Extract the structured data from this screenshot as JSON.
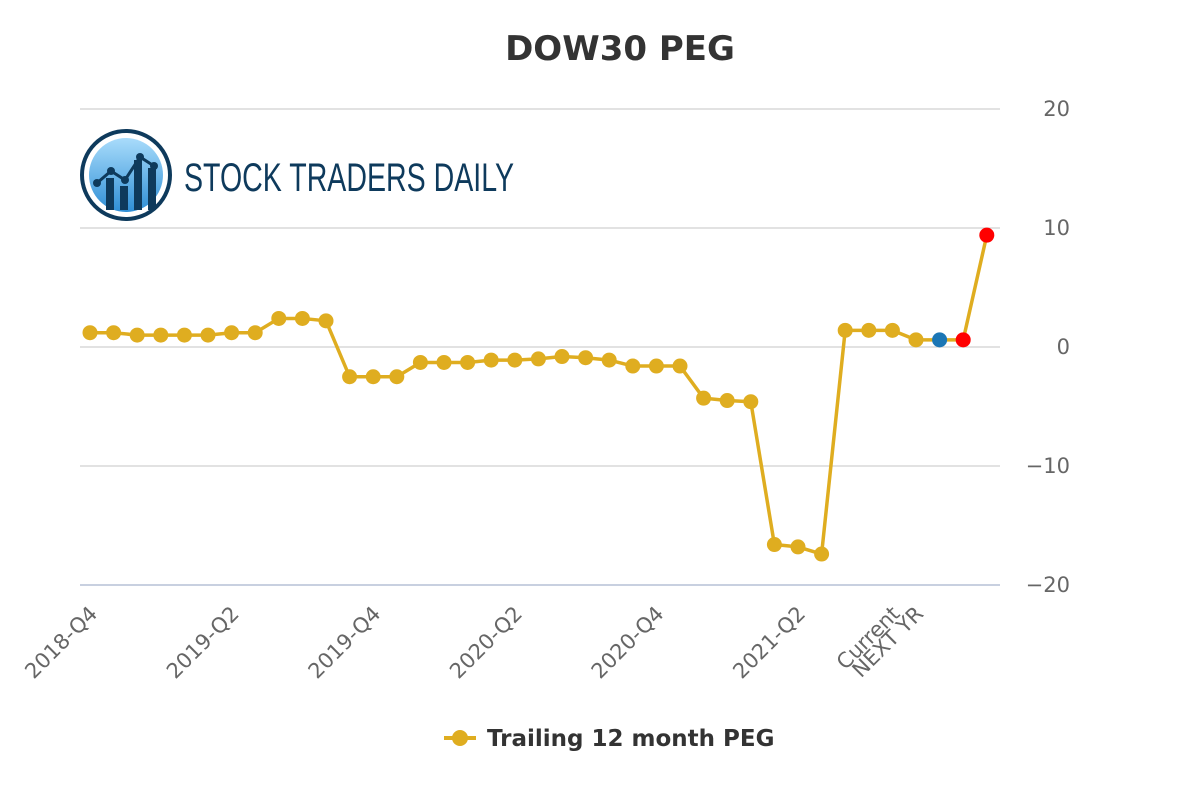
{
  "brand": {
    "name": "STOCK TRADERS DAILY",
    "logo_icon": "rising-chart-logo-icon"
  },
  "colors": {
    "series": "#dfad20",
    "current": "#1b76b5",
    "forecast": "#ff0000",
    "grid": "#d8d8d8"
  },
  "chart_data": {
    "type": "line",
    "title": "DOW30 PEG",
    "xlabel": "",
    "ylabel": "",
    "ylim": [
      -20,
      20
    ],
    "yticks": [
      20,
      10,
      0,
      -10,
      -20
    ],
    "y_axis_side": "right",
    "grid": true,
    "legend_position": "bottom-center",
    "x_tick_labels": [
      {
        "index": 1,
        "label": "2018-Q4"
      },
      {
        "index": 7,
        "label": "2019-Q2"
      },
      {
        "index": 13,
        "label": "2019-Q4"
      },
      {
        "index": 19,
        "label": "2020-Q2"
      },
      {
        "index": 25,
        "label": "2020-Q4"
      },
      {
        "index": 31,
        "label": "2021-Q2"
      },
      {
        "index": 35,
        "label": "Current"
      },
      {
        "index": 36,
        "label": "NEXT YR"
      }
    ],
    "series": [
      {
        "name": "Trailing 12 month PEG",
        "values": [
          1.2,
          1.2,
          1.0,
          1.0,
          1.0,
          1.0,
          1.2,
          1.2,
          2.4,
          2.4,
          2.2,
          -2.5,
          -2.5,
          -2.5,
          -1.3,
          -1.3,
          -1.3,
          -1.1,
          -1.1,
          -1.0,
          -0.8,
          -0.9,
          -1.1,
          -1.6,
          -1.6,
          -1.6,
          -4.3,
          -4.5,
          -4.6,
          -16.6,
          -16.8,
          -17.4,
          1.4,
          1.4,
          1.4,
          0.6,
          0.6,
          0.6,
          9.4
        ]
      }
    ],
    "highlighted_points": [
      {
        "index": 36,
        "role": "current"
      },
      {
        "index": 37,
        "role": "forecast"
      },
      {
        "index": 38,
        "role": "forecast"
      }
    ]
  }
}
